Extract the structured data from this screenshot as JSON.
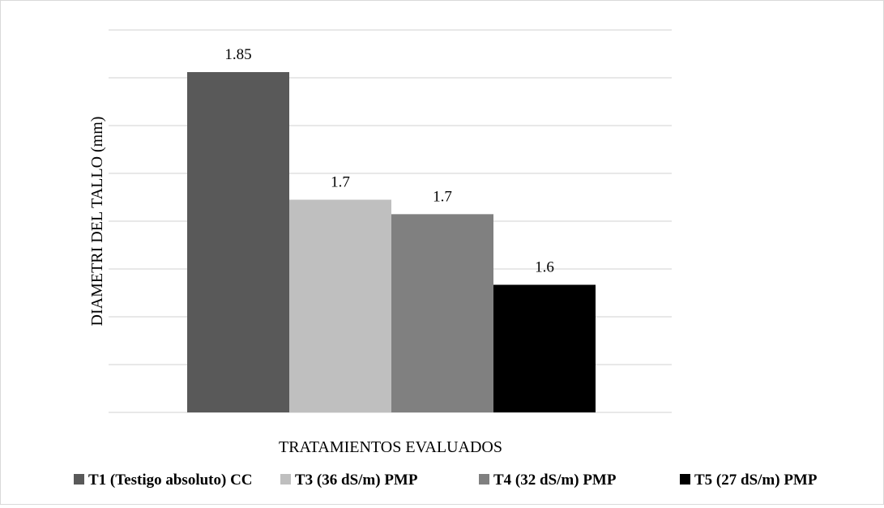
{
  "chart_data": {
    "type": "bar",
    "title": "",
    "xlabel": "TRATAMIENTOS EVALUADOS",
    "ylabel": "DIAMETRI DEL TALLO (mm)",
    "ylim": [
      1.45,
      1.85
    ],
    "grid": true,
    "legend_position": "bottom",
    "series": [
      {
        "name": "T1 (Testigo absoluto) CC",
        "value": 1.85,
        "label": "1.85",
        "color": "#595959"
      },
      {
        "name": "T3 (36 dS/m) PMP",
        "value": 1.7,
        "label": "1.7",
        "color": "#bfbfbf"
      },
      {
        "name": "T4 (32 dS/m) PMP",
        "value": 1.683,
        "label": "1.7",
        "color": "#808080"
      },
      {
        "name": "T5 (27 dS/m) PMP",
        "value": 1.6,
        "label": "1.6",
        "color": "#000000"
      }
    ]
  }
}
